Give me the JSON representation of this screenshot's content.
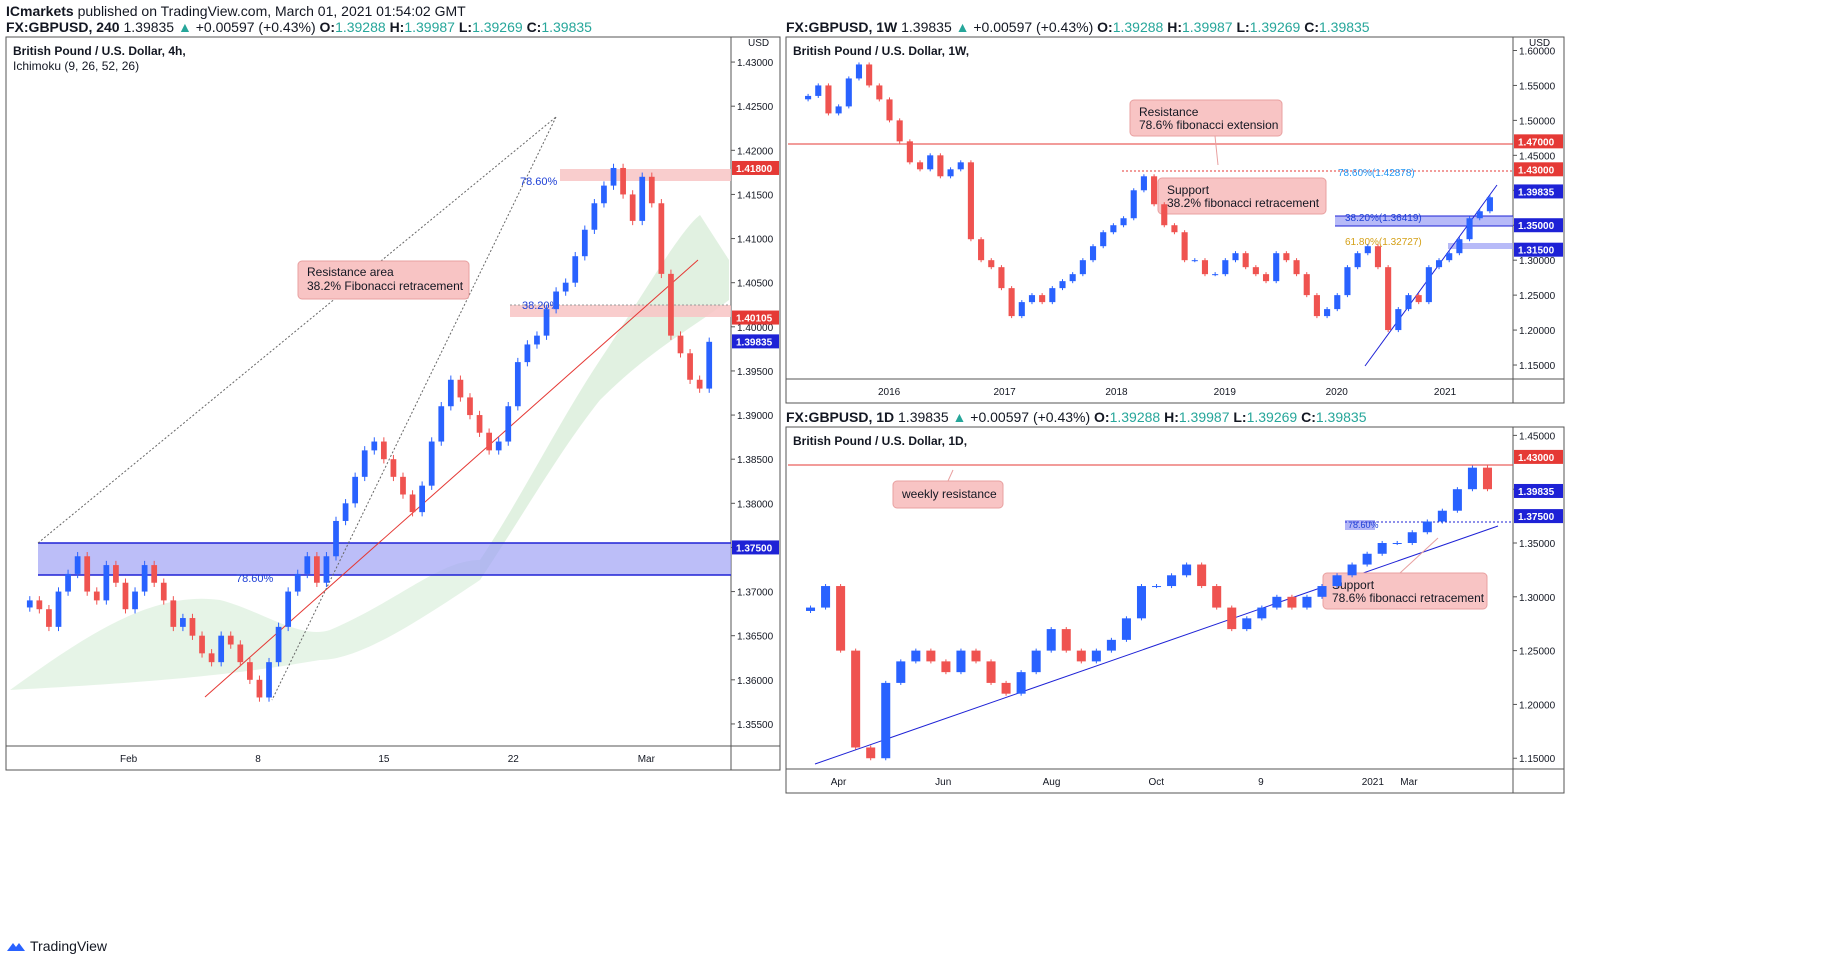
{
  "header": {
    "line1_author": "ICmarkets",
    "line1_rest": " published on TradingView.com, March 01, 2021 01:54:02 GMT",
    "left": {
      "symbol": "FX:GBPUSD, 240",
      "price": "1.39835",
      "change": "+0.00597 (+0.43%)",
      "o": "1.39288",
      "h": "1.39987",
      "l": "1.39269",
      "c": "1.39835"
    },
    "weekly": {
      "symbol": "FX:GBPUSD, 1W",
      "price": "1.39835",
      "change": "+0.00597 (+0.43%)",
      "o": "1.39288",
      "h": "1.39987",
      "l": "1.39269",
      "c": "1.39835"
    },
    "daily": {
      "symbol": "FX:GBPUSD, 1D",
      "price": "1.39835",
      "change": "+0.00597 (+0.43%)",
      "o": "1.39288",
      "h": "1.39987",
      "l": "1.39269",
      "c": "1.39835"
    }
  },
  "footer": {
    "brand": "TradingView"
  },
  "colors": {
    "up": "#26a69a",
    "bar_up": "#2962ff",
    "bar_down": "#ef5350",
    "resistance": "#e53935",
    "support_blue": "#1e22d6",
    "cloud": "#c8e6c9"
  },
  "chart_data": [
    {
      "id": "h4",
      "type": "candlestick",
      "title": "British Pound / U.S. Dollar, 4h,",
      "indicator": "Ichimoku (9, 26, 52, 26)",
      "currency": "USD",
      "ylim": [
        1.3525,
        1.4325
      ],
      "yticks": [
        "1.43000",
        "1.42500",
        "1.42000",
        "1.41500",
        "1.41000",
        "1.40500",
        "1.40000",
        "1.39500",
        "1.39000",
        "1.38500",
        "1.38000",
        "1.37500",
        "1.37000",
        "1.36500",
        "1.36000",
        "1.35500"
      ],
      "xticks": [
        "Feb",
        "8",
        "15",
        "22",
        "Mar"
      ],
      "closes": [
        1.369,
        1.368,
        1.366,
        1.37,
        1.372,
        1.374,
        1.37,
        1.369,
        1.373,
        1.371,
        1.368,
        1.37,
        1.373,
        1.371,
        1.369,
        1.366,
        1.367,
        1.365,
        1.363,
        1.362,
        1.365,
        1.364,
        1.362,
        1.36,
        1.358,
        1.362,
        1.366,
        1.37,
        1.372,
        1.374,
        1.371,
        1.374,
        1.378,
        1.38,
        1.383,
        1.386,
        1.387,
        1.385,
        1.383,
        1.381,
        1.379,
        1.382,
        1.387,
        1.391,
        1.394,
        1.392,
        1.39,
        1.388,
        1.386,
        1.387,
        1.391,
        1.396,
        1.398,
        1.399,
        1.402,
        1.404,
        1.405,
        1.408,
        1.411,
        1.414,
        1.416,
        1.418,
        1.415,
        1.412,
        1.417,
        1.414,
        1.406,
        1.399,
        1.397,
        1.394,
        1.393,
        1.3983
      ],
      "price_labels": [
        {
          "text": "1.41800",
          "value": 1.418,
          "kind": "red"
        },
        {
          "text": "1.40105",
          "value": 1.40105,
          "kind": "red"
        },
        {
          "text": "1.39835",
          "value": 1.39835,
          "kind": "blue"
        },
        {
          "text": "1.37500",
          "value": 1.375,
          "kind": "blue"
        }
      ],
      "fib_labels": [
        "78.60%",
        "38.20%",
        "78.60%"
      ],
      "annotations": [
        {
          "lines": [
            "Resistance area",
            "38.2% Fibonacci retracement"
          ]
        }
      ]
    },
    {
      "id": "w1",
      "type": "candlestick",
      "title": "British Pound / U.S. Dollar, 1W,",
      "currency": "USD",
      "ylim": [
        1.13,
        1.615
      ],
      "yticks": [
        "1.60000",
        "1.55000",
        "1.50000",
        "1.45000",
        "1.40000",
        "1.35000",
        "1.30000",
        "1.25000",
        "1.20000",
        "1.15000"
      ],
      "xticks": [
        "2016",
        "2017",
        "2018",
        "2019",
        "2020",
        "2021"
      ],
      "closes": [
        1.535,
        1.55,
        1.51,
        1.52,
        1.56,
        1.58,
        1.55,
        1.53,
        1.5,
        1.47,
        1.44,
        1.43,
        1.45,
        1.42,
        1.43,
        1.44,
        1.33,
        1.3,
        1.29,
        1.26,
        1.22,
        1.24,
        1.25,
        1.24,
        1.26,
        1.27,
        1.28,
        1.3,
        1.32,
        1.34,
        1.35,
        1.36,
        1.4,
        1.42,
        1.38,
        1.35,
        1.34,
        1.3,
        1.3,
        1.28,
        1.28,
        1.3,
        1.31,
        1.29,
        1.28,
        1.27,
        1.31,
        1.3,
        1.28,
        1.25,
        1.22,
        1.23,
        1.25,
        1.29,
        1.31,
        1.32,
        1.29,
        1.2,
        1.23,
        1.25,
        1.24,
        1.29,
        1.3,
        1.31,
        1.33,
        1.36,
        1.37,
        1.39
      ],
      "price_labels": [
        {
          "text": "1.47000",
          "value": 1.47,
          "kind": "red"
        },
        {
          "text": "1.43000",
          "value": 1.43,
          "kind": "red"
        },
        {
          "text": "1.39835",
          "value": 1.39835,
          "kind": "blue"
        },
        {
          "text": "1.35000",
          "value": 1.35,
          "kind": "blue"
        },
        {
          "text": "1.31500",
          "value": 1.315,
          "kind": "blue"
        }
      ],
      "fib_labels": [
        "78.60%(1.42878)",
        "38.20%(1.36419)",
        "61.80%(1.32727)"
      ],
      "annotations": [
        {
          "lines": [
            "Resistance",
            "78.6% fibonacci extension"
          ]
        },
        {
          "lines": [
            "Support",
            "38.2% fibonacci retracement"
          ]
        }
      ]
    },
    {
      "id": "d1",
      "type": "candlestick",
      "title": "British Pound / U.S. Dollar, 1D,",
      "currency": "",
      "ylim": [
        1.14,
        1.455
      ],
      "yticks": [
        "1.45000",
        "1.40000",
        "1.35000",
        "1.30000",
        "1.25000",
        "1.20000",
        "1.15000"
      ],
      "xticks": [
        "Apr",
        "Jun",
        "Aug",
        "Oct",
        "9",
        "2021",
        "Mar"
      ],
      "closes": [
        1.29,
        1.31,
        1.25,
        1.16,
        1.15,
        1.22,
        1.24,
        1.25,
        1.24,
        1.23,
        1.25,
        1.24,
        1.22,
        1.21,
        1.23,
        1.25,
        1.27,
        1.25,
        1.24,
        1.25,
        1.26,
        1.28,
        1.31,
        1.31,
        1.32,
        1.33,
        1.31,
        1.29,
        1.27,
        1.28,
        1.29,
        1.3,
        1.29,
        1.3,
        1.31,
        1.32,
        1.33,
        1.34,
        1.35,
        1.35,
        1.36,
        1.37,
        1.38,
        1.4,
        1.42,
        1.4
      ],
      "price_labels": [
        {
          "text": "1.43000",
          "value": 1.43,
          "kind": "red"
        },
        {
          "text": "1.39835",
          "value": 1.39835,
          "kind": "blue"
        },
        {
          "text": "1.37500",
          "value": 1.375,
          "kind": "blue"
        }
      ],
      "fib_labels": [
        "78.60%"
      ],
      "annotations": [
        {
          "lines": [
            "weekly resistance"
          ]
        },
        {
          "lines": [
            "Support",
            "78.6% fibonacci retracement"
          ]
        }
      ]
    }
  ]
}
